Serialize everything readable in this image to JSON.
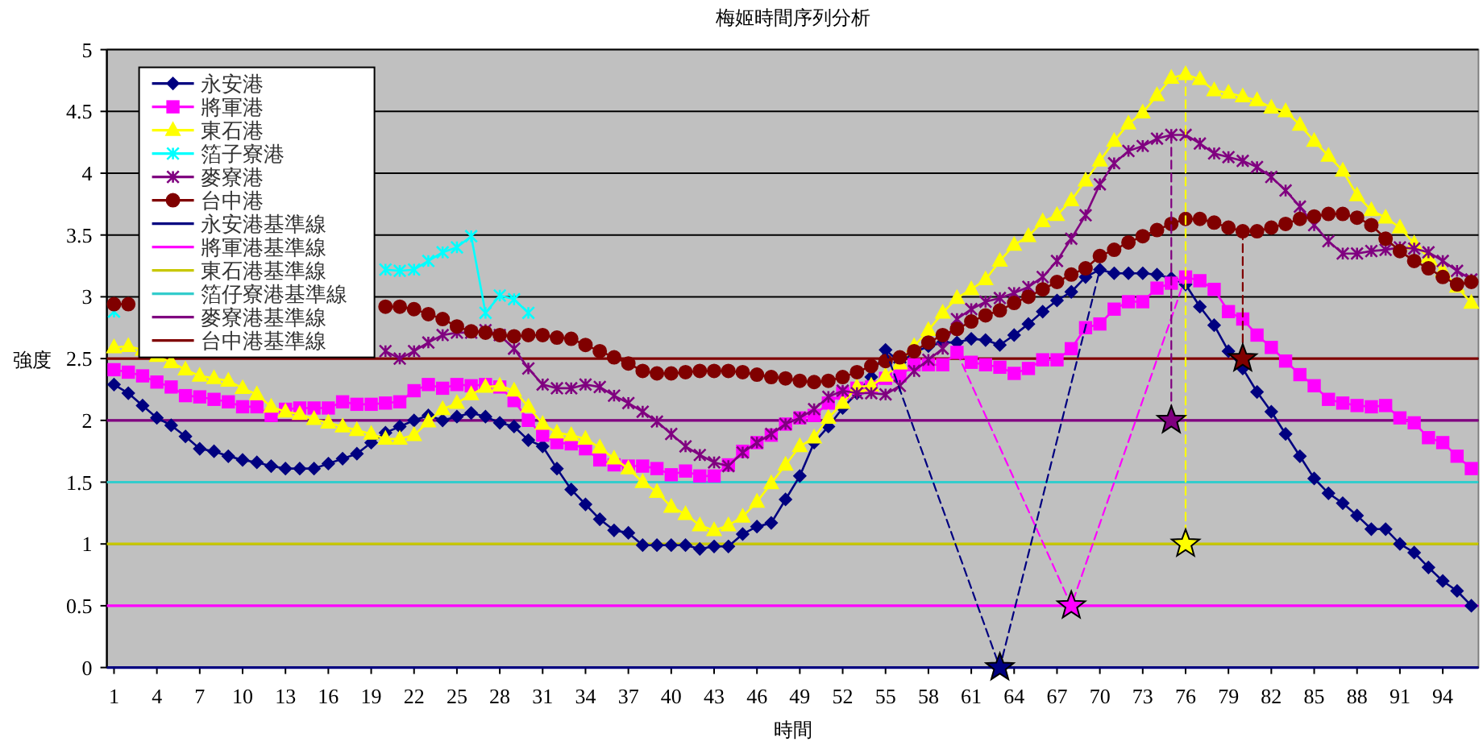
{
  "chart_data": {
    "type": "line",
    "title": "梅姬時間序列分析",
    "xlabel": "時間",
    "ylabel": "強度",
    "x": [
      1,
      2,
      3,
      4,
      5,
      6,
      7,
      8,
      9,
      10,
      11,
      12,
      13,
      14,
      15,
      16,
      17,
      18,
      19,
      20,
      21,
      22,
      23,
      24,
      25,
      26,
      27,
      28,
      29,
      30,
      31,
      32,
      33,
      34,
      35,
      36,
      37,
      38,
      39,
      40,
      41,
      42,
      43,
      44,
      45,
      46,
      47,
      48,
      49,
      50,
      51,
      52,
      53,
      54,
      55,
      56,
      57,
      58,
      59,
      60,
      61,
      62,
      63,
      64,
      65,
      66,
      67,
      68,
      69,
      70,
      71,
      72,
      73,
      74,
      75,
      76,
      77,
      78,
      79,
      80,
      81,
      82,
      83,
      84,
      85,
      86,
      87,
      88,
      89,
      90,
      91,
      92,
      93,
      94,
      95,
      96
    ],
    "xlim": [
      0.5,
      96.5
    ],
    "xticks": [
      1,
      4,
      7,
      10,
      13,
      16,
      19,
      22,
      25,
      28,
      31,
      34,
      37,
      40,
      43,
      46,
      49,
      52,
      55,
      58,
      61,
      64,
      67,
      70,
      73,
      76,
      79,
      82,
      85,
      88,
      91,
      94
    ],
    "ylim": [
      0,
      5
    ],
    "yticks": [
      0,
      0.5,
      1,
      1.5,
      2,
      2.5,
      3,
      3.5,
      4,
      4.5,
      5
    ],
    "grid": "y",
    "legend": "top left",
    "line_style": "solid",
    "series": [
      {
        "name": "永安港",
        "color": "#000080",
        "marker": "diamond",
        "values": [
          2.29,
          2.22,
          2.12,
          2.02,
          1.96,
          1.87,
          1.77,
          1.75,
          1.71,
          1.68,
          1.66,
          1.63,
          1.61,
          1.61,
          1.61,
          1.65,
          1.69,
          1.73,
          1.82,
          1.9,
          1.95,
          2.0,
          2.04,
          2.0,
          2.03,
          2.06,
          2.03,
          1.98,
          1.95,
          1.84,
          1.79,
          1.61,
          1.44,
          1.32,
          1.2,
          1.11,
          1.09,
          0.99,
          0.99,
          0.99,
          0.99,
          0.96,
          0.98,
          0.98,
          1.08,
          1.14,
          1.17,
          1.36,
          1.55,
          1.82,
          1.95,
          2.1,
          2.22,
          2.35,
          2.57,
          2.47,
          2.55,
          2.6,
          2.63,
          2.63,
          2.66,
          2.65,
          2.61,
          2.69,
          2.78,
          2.88,
          2.97,
          3.04,
          3.16,
          3.22,
          3.19,
          3.19,
          3.19,
          3.18,
          3.15,
          3.1,
          2.92,
          2.77,
          2.56,
          2.42,
          2.23,
          2.07,
          1.89,
          1.71,
          1.53,
          1.41,
          1.33,
          1.23,
          1.12,
          1.12,
          1.0,
          0.93,
          0.81,
          0.7,
          0.62,
          0.5
        ]
      },
      {
        "name": "將軍港",
        "color": "#ff00ff",
        "marker": "square",
        "values": [
          2.41,
          2.39,
          2.36,
          2.31,
          2.27,
          2.2,
          2.19,
          2.17,
          2.15,
          2.11,
          2.11,
          2.04,
          2.09,
          2.1,
          2.1,
          2.1,
          2.15,
          2.13,
          2.13,
          2.14,
          2.15,
          2.24,
          2.29,
          2.26,
          2.29,
          2.28,
          2.29,
          2.27,
          2.16,
          2.0,
          1.88,
          1.82,
          1.81,
          1.77,
          1.68,
          1.64,
          1.63,
          1.63,
          1.61,
          1.56,
          1.59,
          1.55,
          1.55,
          1.64,
          1.75,
          1.82,
          1.88,
          1.97,
          2.02,
          2.04,
          2.14,
          2.22,
          2.26,
          2.27,
          2.34,
          2.36,
          2.45,
          2.45,
          2.45,
          2.55,
          2.47,
          2.45,
          2.43,
          2.38,
          2.42,
          2.49,
          2.49,
          2.58,
          2.75,
          2.78,
          2.9,
          2.96,
          2.96,
          3.07,
          3.11,
          3.16,
          3.13,
          3.06,
          2.88,
          2.82,
          2.69,
          2.59,
          2.48,
          2.37,
          2.28,
          2.17,
          2.14,
          2.12,
          2.11,
          2.12,
          2.02,
          1.98,
          1.86,
          1.82,
          1.71,
          1.61
        ]
      },
      {
        "name": "東石港",
        "color": "#ffff00",
        "marker": "triangle",
        "values": [
          2.59,
          2.6,
          2.57,
          2.52,
          2.47,
          2.41,
          2.36,
          2.34,
          2.32,
          2.26,
          2.21,
          2.11,
          2.07,
          2.05,
          2.01,
          1.98,
          1.95,
          1.92,
          1.89,
          1.85,
          1.85,
          1.88,
          1.99,
          2.09,
          2.14,
          2.21,
          2.27,
          2.28,
          2.24,
          2.11,
          1.97,
          1.9,
          1.88,
          1.85,
          1.78,
          1.69,
          1.61,
          1.5,
          1.42,
          1.3,
          1.24,
          1.15,
          1.11,
          1.15,
          1.22,
          1.34,
          1.49,
          1.64,
          1.79,
          1.86,
          2.02,
          2.14,
          2.27,
          2.28,
          2.36,
          2.46,
          2.6,
          2.73,
          2.87,
          2.99,
          3.06,
          3.14,
          3.29,
          3.42,
          3.49,
          3.61,
          3.66,
          3.78,
          3.94,
          4.1,
          4.26,
          4.4,
          4.49,
          4.63,
          4.77,
          4.8,
          4.76,
          4.67,
          4.65,
          4.62,
          4.59,
          4.53,
          4.5,
          4.39,
          4.26,
          4.14,
          4.02,
          3.82,
          3.7,
          3.64,
          3.56,
          3.43,
          3.32,
          3.21,
          3.08,
          2.95
        ]
      },
      {
        "name": "箔子寮港",
        "color": "#00ffff",
        "marker": "cross",
        "values": [
          2.88,
          null,
          null,
          null,
          null,
          null,
          null,
          null,
          null,
          null,
          null,
          null,
          null,
          null,
          null,
          null,
          null,
          null,
          null,
          3.22,
          3.21,
          3.22,
          3.29,
          3.36,
          3.4,
          3.49,
          2.87,
          3.01,
          2.98,
          2.87,
          null,
          null,
          null,
          null,
          null,
          null,
          null,
          null,
          null,
          null,
          null,
          null,
          null,
          null,
          null,
          null,
          null,
          null,
          null,
          null,
          null,
          null,
          null,
          null,
          null,
          null,
          null,
          null,
          null,
          null,
          null,
          null,
          null,
          null,
          null,
          null,
          null,
          null,
          null,
          null,
          null,
          null,
          null,
          null,
          null,
          null,
          null,
          null,
          null,
          null,
          null,
          null,
          null,
          null,
          null,
          null,
          null,
          null,
          null,
          null,
          null,
          null,
          null,
          null,
          null,
          null
        ]
      },
      {
        "name": "麥寮港",
        "color": "#800080",
        "marker": "cross",
        "values": [
          null,
          null,
          null,
          null,
          null,
          null,
          null,
          null,
          null,
          null,
          null,
          null,
          null,
          null,
          null,
          null,
          null,
          null,
          null,
          2.56,
          2.5,
          2.56,
          2.63,
          2.69,
          2.71,
          2.71,
          2.73,
          2.69,
          2.58,
          2.42,
          2.29,
          2.26,
          2.26,
          2.29,
          2.27,
          2.2,
          2.14,
          2.07,
          1.99,
          1.89,
          1.79,
          1.72,
          1.66,
          1.63,
          1.74,
          1.82,
          1.89,
          1.97,
          2.02,
          2.09,
          2.19,
          2.24,
          2.22,
          2.22,
          2.21,
          2.28,
          2.4,
          2.49,
          2.58,
          2.82,
          2.9,
          2.96,
          2.99,
          3.03,
          3.08,
          3.16,
          3.29,
          3.47,
          3.66,
          3.91,
          4.08,
          4.18,
          4.22,
          4.28,
          4.31,
          4.31,
          4.24,
          4.16,
          4.13,
          4.1,
          4.05,
          3.97,
          3.86,
          3.73,
          3.58,
          3.45,
          3.35,
          3.35,
          3.37,
          3.38,
          3.4,
          3.39,
          3.36,
          3.29,
          3.21,
          3.14
        ]
      },
      {
        "name": "台中港",
        "color": "#800000",
        "marker": "circle",
        "values": [
          2.94,
          2.94,
          null,
          null,
          null,
          null,
          null,
          null,
          null,
          null,
          null,
          null,
          null,
          null,
          null,
          null,
          null,
          null,
          null,
          2.92,
          2.92,
          2.9,
          2.86,
          2.82,
          2.76,
          2.72,
          2.71,
          2.69,
          2.68,
          2.69,
          2.69,
          2.67,
          2.66,
          2.61,
          2.56,
          2.51,
          2.46,
          2.4,
          2.38,
          2.38,
          2.39,
          2.4,
          2.4,
          2.4,
          2.39,
          2.37,
          2.35,
          2.34,
          2.32,
          2.31,
          2.32,
          2.35,
          2.39,
          2.44,
          2.48,
          2.51,
          2.56,
          2.63,
          2.69,
          2.74,
          2.8,
          2.85,
          2.89,
          2.95,
          3.0,
          3.06,
          3.12,
          3.18,
          3.23,
          3.33,
          3.38,
          3.44,
          3.49,
          3.54,
          3.59,
          3.63,
          3.63,
          3.6,
          3.56,
          3.53,
          3.53,
          3.56,
          3.59,
          3.63,
          3.65,
          3.67,
          3.67,
          3.64,
          3.58,
          3.47,
          3.37,
          3.29,
          3.23,
          3.16,
          3.1,
          3.12
        ]
      },
      {
        "color": "#000080",
        "marker": "none",
        "line_style": "dashed",
        "x": [
          55,
          63,
          70
        ],
        "values": [
          2.57,
          0,
          3.22
        ]
      },
      {
        "color": "#ff00ff",
        "marker": "none",
        "line_style": "dashed",
        "x": [
          60,
          68,
          76
        ],
        "values": [
          2.55,
          0.5,
          3.16
        ]
      },
      {
        "color": "#ffff00",
        "marker": "none",
        "line_style": "dashed",
        "x": [
          76,
          76
        ],
        "values": [
          4.8,
          1
        ]
      },
      {
        "color": "#800080",
        "marker": "none",
        "line_style": "dashed",
        "x": [
          75,
          75
        ],
        "values": [
          4.31,
          2
        ]
      },
      {
        "color": "#800000",
        "marker": "none",
        "line_style": "dashed",
        "x": [
          80,
          80
        ],
        "values": [
          3.53,
          2.5
        ]
      },
      {
        "type": "scatter",
        "marker": "star",
        "x": [
          63,
          68,
          76,
          75,
          80
        ],
        "values": [
          0,
          0.5,
          1,
          2,
          2.5
        ],
        "colors": [
          "#000080",
          "#ff00ff",
          "#ffff00",
          "#800080",
          "#800000"
        ]
      }
    ],
    "ref_lines": [
      {
        "axis": "y",
        "value": 0,
        "label": "永安港基準線",
        "color": "#000080"
      },
      {
        "axis": "y",
        "value": 0.5,
        "label": "將軍港基準線",
        "color": "#ff00ff"
      },
      {
        "axis": "y",
        "value": 1,
        "label": "東石港基準線",
        "color": "#c8c800"
      },
      {
        "axis": "y",
        "value": 1.5,
        "label": "箔仔寮港基準線",
        "color": "#33cccc"
      },
      {
        "axis": "y",
        "value": 2,
        "label": "麥寮港基準線",
        "color": "#800080"
      },
      {
        "axis": "y",
        "value": 2.5,
        "label": "台中港基準線",
        "color": "#800000"
      }
    ]
  }
}
